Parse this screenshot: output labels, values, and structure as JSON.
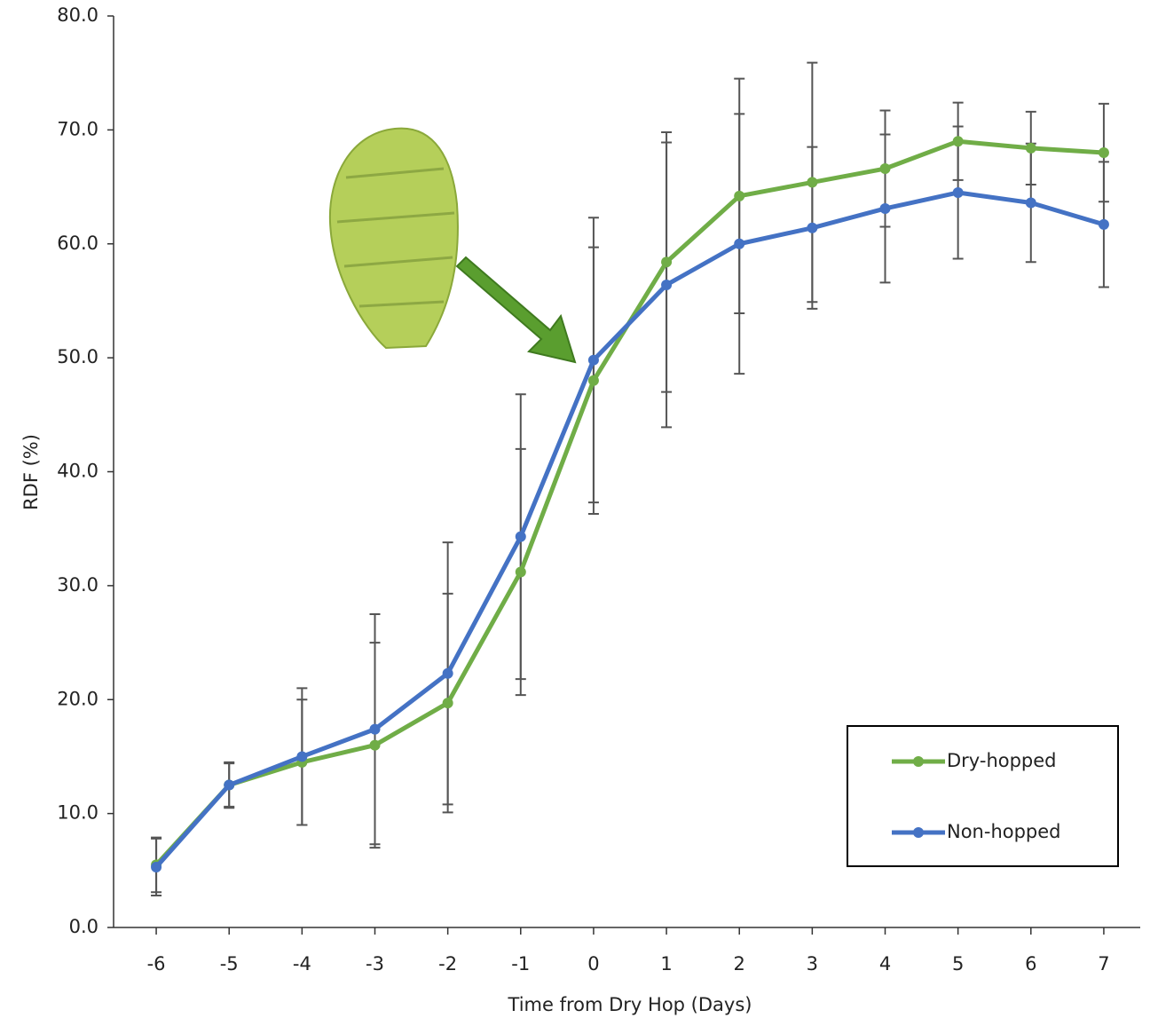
{
  "chart_data": {
    "type": "line",
    "x_label": "Time from Dry Hop (Days)",
    "y_label": "RDF (%)",
    "x": [
      -6,
      -5,
      -4,
      -3,
      -2,
      -1,
      0,
      1,
      2,
      3,
      4,
      5,
      6,
      7
    ],
    "xlim": [
      -6.5,
      7.5
    ],
    "xticks": [
      -6,
      -5,
      -4,
      -3,
      -2,
      -1,
      0,
      1,
      2,
      3,
      4,
      5,
      6,
      7
    ],
    "ylim": [
      0,
      80
    ],
    "yticks": [
      {
        "value": 0,
        "label": "0.0"
      },
      {
        "value": 10,
        "label": "10.0"
      },
      {
        "value": 20,
        "label": "20.0"
      },
      {
        "value": 30,
        "label": "30.0"
      },
      {
        "value": 40,
        "label": "40.0"
      },
      {
        "value": 50,
        "label": "50.0"
      },
      {
        "value": 60,
        "label": "60.0"
      },
      {
        "value": 70,
        "label": "70.0"
      },
      {
        "value": 80,
        "label": "80.0"
      }
    ],
    "grid": false,
    "legend": "lower right",
    "series": [
      {
        "name": "Dry-hopped",
        "color": "#70ad47",
        "values": [
          5.5,
          12.5,
          14.5,
          16.0,
          19.7,
          31.2,
          48.0,
          58.4,
          64.2,
          65.4,
          66.6,
          69.0,
          68.4,
          68.0
        ],
        "errors": [
          2.4,
          2.0,
          5.5,
          9.0,
          9.6,
          10.8,
          11.7,
          11.4,
          10.3,
          10.5,
          5.1,
          3.4,
          3.2,
          4.3
        ]
      },
      {
        "name": "Non-hopped",
        "color": "#4472c4",
        "values": [
          5.3,
          12.5,
          15.0,
          17.4,
          22.3,
          34.3,
          49.8,
          56.4,
          60.0,
          61.4,
          63.1,
          64.5,
          63.6,
          61.7
        ],
        "errors": [
          2.5,
          1.9,
          6.0,
          10.1,
          11.5,
          12.5,
          12.5,
          12.5,
          11.4,
          7.1,
          6.5,
          5.8,
          5.2,
          5.5
        ]
      }
    ]
  }
}
